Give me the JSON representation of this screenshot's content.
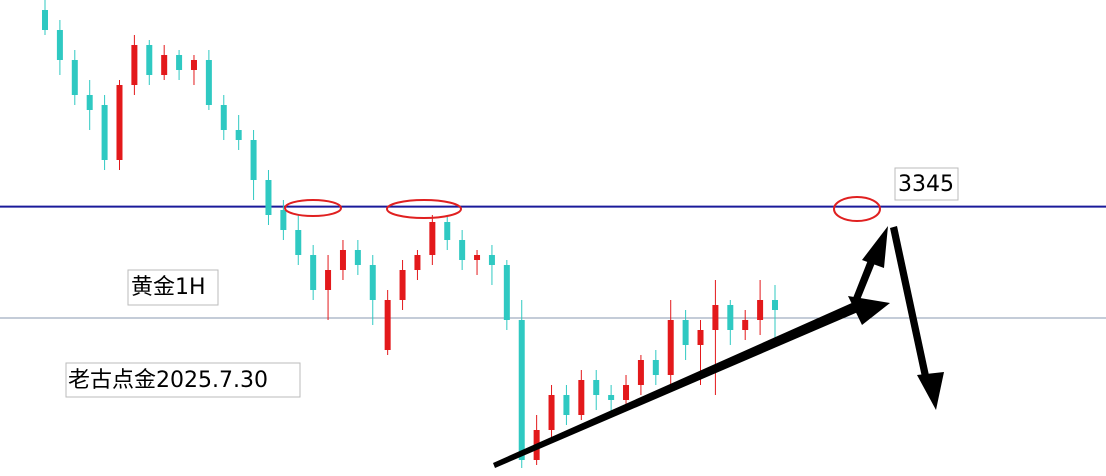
{
  "chart_data": {
    "type": "candlestick",
    "annotations": [
      "黄金1H",
      "老古点金2025.7.30"
    ],
    "resistance_level": 3345,
    "reference_line": 3311.6,
    "ylim": [
      3264.2,
      3407
    ],
    "up_color": "#e3191b",
    "down_color": "#2fc9c2",
    "level_color": "#1a1a9a",
    "open": [
      3404,
      3398,
      3389,
      3378.5,
      3375.5,
      3359,
      3381.5,
      3393.5,
      3384.5,
      3390.5,
      3386,
      3389,
      3375.5,
      3368,
      3365,
      3353,
      3344,
      3338,
      3330.5,
      3320,
      3326,
      3332,
      3327.5,
      3302,
      3317,
      3326,
      3330.5,
      3340.4,
      3335,
      3329,
      3330.5,
      3327.5,
      3311,
      3269,
      3278,
      3288.5,
      3282.5,
      3293,
      3288.5,
      3287,
      3291.5,
      3299,
      3294.5,
      3311,
      3303.5,
      3308,
      3315.5,
      3308,
      3311,
      3317
    ],
    "high": [
      3407,
      3401,
      3392,
      3383,
      3378.5,
      3383,
      3396.5,
      3395,
      3393.5,
      3392,
      3390.5,
      3392,
      3378.5,
      3372.5,
      3368,
      3356,
      3347,
      3342.5,
      3333.5,
      3330.5,
      3335,
      3335,
      3330.5,
      3320,
      3329,
      3332,
      3342.5,
      3342.5,
      3338,
      3332,
      3333.5,
      3329,
      3317,
      3282.5,
      3291.5,
      3291.5,
      3296,
      3296,
      3291.5,
      3294.5,
      3300.5,
      3302,
      3317,
      3314,
      3311,
      3323,
      3317,
      3314,
      3323,
      3321.5
    ],
    "low": [
      3396.5,
      3384.5,
      3375.5,
      3368,
      3356,
      3356,
      3378.5,
      3381.5,
      3383,
      3383,
      3381.5,
      3374,
      3365,
      3362,
      3347,
      3339.5,
      3335,
      3327.5,
      3317,
      3311,
      3323,
      3324.5,
      3309.5,
      3300.5,
      3314,
      3323,
      3327.5,
      3332,
      3326,
      3324.5,
      3321.5,
      3308,
      3266.6,
      3267.5,
      3275,
      3279.5,
      3281,
      3284,
      3282.5,
      3284,
      3288.5,
      3291.5,
      3291.5,
      3299,
      3291.5,
      3288.5,
      3303.5,
      3305,
      3306.5,
      3305
    ],
    "close": [
      3398,
      3389,
      3378.5,
      3374,
      3359,
      3381.5,
      3393.5,
      3384.5,
      3390.5,
      3386,
      3389,
      3375.5,
      3368,
      3365,
      3353,
      3342.5,
      3338,
      3330.5,
      3320,
      3326,
      3332,
      3327.5,
      3317,
      3317,
      3326,
      3330.5,
      3340.4,
      3335,
      3329,
      3330.5,
      3327.5,
      3311,
      3269,
      3278,
      3288.5,
      3282.5,
      3293,
      3288.5,
      3287,
      3291.5,
      3299,
      3294.5,
      3311,
      3303.5,
      3308,
      3315.5,
      3308,
      3311,
      3317,
      3314
    ]
  }
}
